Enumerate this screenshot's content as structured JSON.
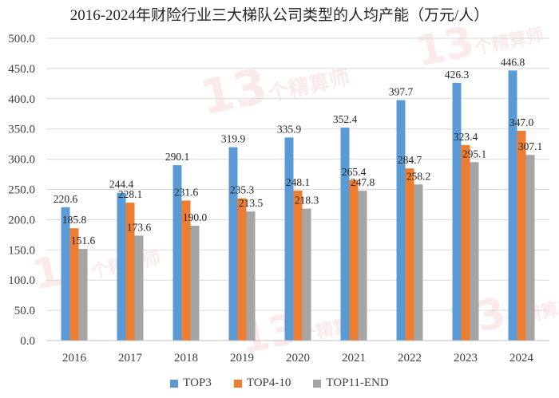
{
  "chart_data": {
    "type": "bar",
    "title": "2016-2024年财险行业三大梯队公司类型的人均产能（万元/人）",
    "categories": [
      "2016",
      "2017",
      "2018",
      "2019",
      "2020",
      "2021",
      "2022",
      "2023",
      "2024"
    ],
    "series": [
      {
        "name": "TOP3",
        "color": "#5B9BD5",
        "values": [
          220.6,
          244.4,
          290.1,
          319.9,
          335.9,
          352.4,
          397.7,
          426.3,
          446.8
        ]
      },
      {
        "name": "TOP4-10",
        "color": "#ED7D31",
        "values": [
          185.8,
          228.1,
          231.6,
          235.3,
          248.1,
          265.4,
          284.7,
          323.4,
          347.0
        ]
      },
      {
        "name": "TOP11-END",
        "color": "#A5A5A5",
        "values": [
          151.6,
          173.6,
          190.0,
          213.5,
          218.3,
          247.8,
          258.2,
          295.1,
          307.1
        ]
      }
    ],
    "ylim": [
      0,
      500
    ],
    "yticks": [
      "0.0",
      "50.0",
      "100.0",
      "150.0",
      "200.0",
      "250.0",
      "300.0",
      "350.0",
      "400.0",
      "450.0",
      "500.0"
    ],
    "xlabel": "",
    "ylabel": "",
    "legend_position": "bottom",
    "grid": true
  },
  "watermark": {
    "number": "13",
    "text": "个精算师"
  }
}
